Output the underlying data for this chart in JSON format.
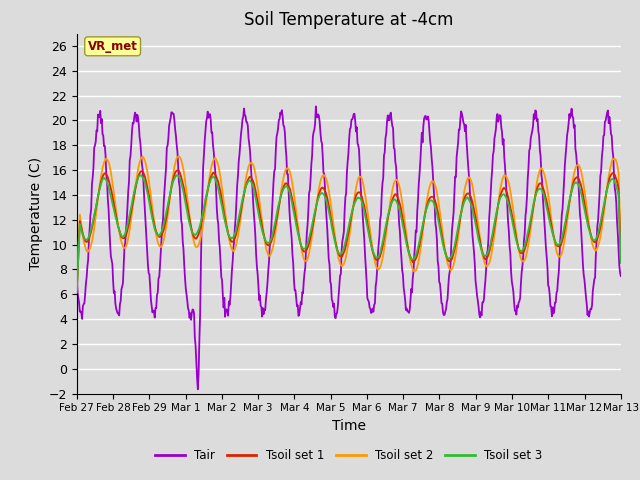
{
  "title": "Soil Temperature at -4cm",
  "xlabel": "Time",
  "ylabel": "Temperature (C)",
  "ylim": [
    -2,
    27
  ],
  "yticks": [
    -2,
    0,
    2,
    4,
    6,
    8,
    10,
    12,
    14,
    16,
    18,
    20,
    22,
    24,
    26
  ],
  "background_color": "#dcdcdc",
  "plot_bg_color": "#dcdcdc",
  "grid_color": "#ffffff",
  "colors": {
    "Tair": "#9900cc",
    "Tsoil_set1": "#dd2200",
    "Tsoil_set2": "#ff9900",
    "Tsoil_set3": "#33bb33"
  },
  "legend_labels": [
    "Tair",
    "Tsoil set 1",
    "Tsoil set 2",
    "Tsoil set 3"
  ],
  "annotation_text": "VR_met",
  "annotation_color": "#880000",
  "annotation_bg": "#ffff99",
  "x_tick_labels": [
    "Feb 27",
    "Feb 28",
    "Feb 29",
    "Mar 1",
    "Mar 2",
    "Mar 3",
    "Mar 4",
    "Mar 5",
    "Mar 6",
    "Mar 7",
    "Mar 8",
    "Mar 9",
    "Mar 10",
    "Mar 11",
    "Mar 12",
    "Mar 13"
  ],
  "num_days": 15,
  "points_per_day": 48
}
